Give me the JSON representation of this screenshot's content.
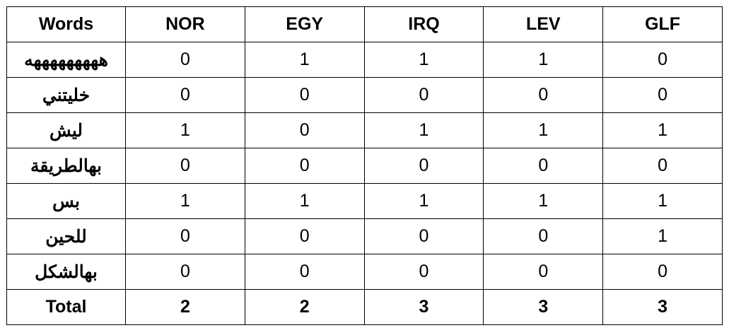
{
  "table": {
    "headers": [
      "Words",
      "NOR",
      "EGY",
      "IRQ",
      "LEV",
      "GLF"
    ],
    "rows": [
      {
        "word": "هههههههههه",
        "values": [
          "0",
          "1",
          "1",
          "1",
          "0"
        ]
      },
      {
        "word": "خليتني",
        "values": [
          "0",
          "0",
          "0",
          "0",
          "0"
        ]
      },
      {
        "word": "ليش",
        "values": [
          "1",
          "0",
          "1",
          "1",
          "1"
        ]
      },
      {
        "word": "بهالطريقة",
        "values": [
          "0",
          "0",
          "0",
          "0",
          "0"
        ]
      },
      {
        "word": "بس",
        "values": [
          "1",
          "1",
          "1",
          "1",
          "1"
        ]
      },
      {
        "word": "للحين",
        "values": [
          "0",
          "0",
          "0",
          "0",
          "1"
        ]
      },
      {
        "word": "بهالشكل",
        "values": [
          "0",
          "0",
          "0",
          "0",
          "0"
        ]
      }
    ],
    "total": {
      "label": "Total",
      "values": [
        "2",
        "2",
        "3",
        "3",
        "3"
      ]
    }
  }
}
